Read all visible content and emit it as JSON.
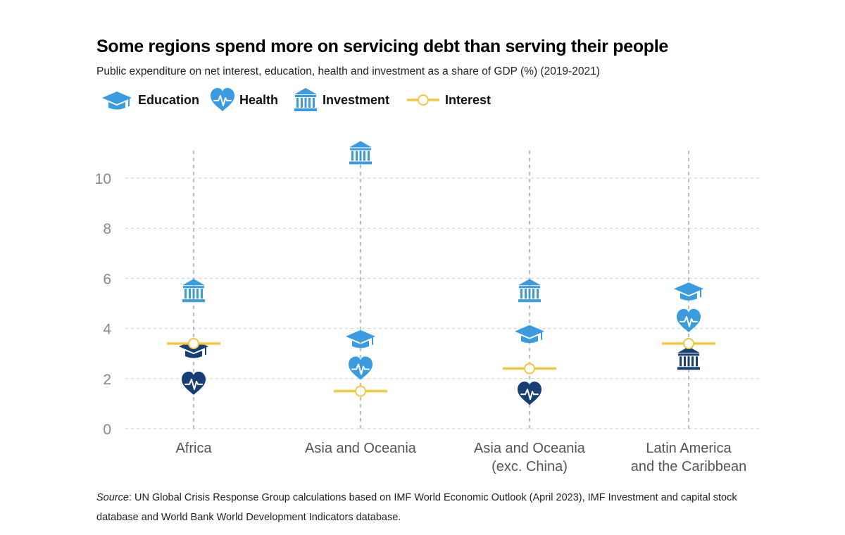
{
  "title": "Some regions spend more on servicing debt than serving their people",
  "subtitle": "Public expenditure on net interest, education, health and investment as a share of GDP (%) (2019-2021)",
  "legend": {
    "education": "Education",
    "health": "Health",
    "investment": "Investment",
    "interest": "Interest"
  },
  "source": {
    "label": "Source",
    "text": ": UN Global Crisis Response Group calculations based on IMF World Economic Outlook (April 2023), IMF Investment and capital stock database and World Bank World Development Indicators database."
  },
  "colors": {
    "icon_light": "#3a9be0",
    "icon_dark": "#173f75",
    "interest": "#f2c744",
    "grid": "#cccccc",
    "axis_text": "#888888",
    "category_text": "#555555"
  },
  "chart_data": {
    "type": "scatter",
    "title": "Some regions spend more on servicing debt than serving their people",
    "ylabel": "",
    "xlabel": "",
    "ylim": [
      0,
      11
    ],
    "yticks": [
      0,
      2,
      4,
      6,
      8,
      10
    ],
    "grid": true,
    "categories": [
      [
        "Africa"
      ],
      [
        "Asia and Oceania"
      ],
      [
        "Asia and Oceania",
        "(exc. China)"
      ],
      [
        "Latin America",
        "and the Caribbean"
      ]
    ],
    "series": [
      {
        "name": "Education",
        "icon": "education",
        "values": [
          3.2,
          3.6,
          3.8,
          5.5
        ],
        "dark": [
          true,
          false,
          false,
          false
        ]
      },
      {
        "name": "Health",
        "icon": "health",
        "values": [
          1.8,
          2.4,
          1.4,
          4.3
        ],
        "dark": [
          true,
          false,
          true,
          false
        ]
      },
      {
        "name": "Investment",
        "icon": "investment",
        "values": [
          5.5,
          11.0,
          5.5,
          2.8
        ],
        "dark": [
          false,
          false,
          false,
          true
        ]
      },
      {
        "name": "Interest",
        "icon": "interest",
        "values": [
          3.4,
          1.5,
          2.4,
          3.4
        ]
      }
    ]
  }
}
